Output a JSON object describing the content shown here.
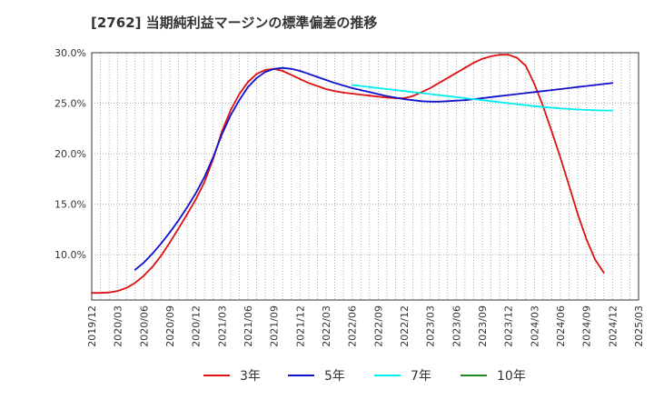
{
  "chart_data": {
    "type": "line",
    "title": "[2762]  当期純利益マージンの標準偏差の推移",
    "xlabel": "",
    "ylabel": "",
    "ylim": [
      5.5,
      30.0
    ],
    "grid": true,
    "legend_position": "bottom",
    "y_ticks": [
      "10.0%",
      "15.0%",
      "20.0%",
      "25.0%",
      "30.0%"
    ],
    "y_tick_values": [
      10,
      15,
      20,
      25,
      30
    ],
    "x_ticks": [
      "2019/12",
      "2020/03",
      "2020/06",
      "2020/09",
      "2020/12",
      "2021/03",
      "2021/06",
      "2021/09",
      "2021/12",
      "2022/03",
      "2022/06",
      "2022/09",
      "2022/12",
      "2023/03",
      "2023/06",
      "2023/09",
      "2023/12",
      "2024/03",
      "2024/06",
      "2024/09",
      "2024/12",
      "2025/03"
    ],
    "series": [
      {
        "name": "3年",
        "color": "#dd1111",
        "points": [
          [
            "2019/12",
            6.2
          ],
          [
            "2020/01",
            6.2
          ],
          [
            "2020/02",
            6.25
          ],
          [
            "2020/03",
            6.4
          ],
          [
            "2020/04",
            6.7
          ],
          [
            "2020/05",
            7.2
          ],
          [
            "2020/06",
            7.9
          ],
          [
            "2020/07",
            8.8
          ],
          [
            "2020/08",
            9.9
          ],
          [
            "2020/09",
            11.2
          ],
          [
            "2020/10",
            12.6
          ],
          [
            "2020/11",
            14.0
          ],
          [
            "2020/12",
            15.5
          ],
          [
            "2021/01",
            17.2
          ],
          [
            "2021/02",
            19.5
          ],
          [
            "2021/03",
            22.2
          ],
          [
            "2021/04",
            24.3
          ],
          [
            "2021/05",
            25.9
          ],
          [
            "2021/06",
            27.1
          ],
          [
            "2021/07",
            27.9
          ],
          [
            "2021/08",
            28.3
          ],
          [
            "2021/09",
            28.4
          ],
          [
            "2021/10",
            28.2
          ],
          [
            "2021/11",
            27.8
          ],
          [
            "2021/12",
            27.4
          ],
          [
            "2022/01",
            27.0
          ],
          [
            "2022/02",
            26.7
          ],
          [
            "2022/03",
            26.4
          ],
          [
            "2022/04",
            26.2
          ],
          [
            "2022/05",
            26.05
          ],
          [
            "2022/06",
            25.95
          ],
          [
            "2022/07",
            25.85
          ],
          [
            "2022/08",
            25.75
          ],
          [
            "2022/09",
            25.65
          ],
          [
            "2022/10",
            25.55
          ],
          [
            "2022/11",
            25.5
          ],
          [
            "2022/12",
            25.5
          ],
          [
            "2023/01",
            25.7
          ],
          [
            "2023/02",
            26.1
          ],
          [
            "2023/03",
            26.5
          ],
          [
            "2023/04",
            27.0
          ],
          [
            "2023/05",
            27.5
          ],
          [
            "2023/06",
            28.0
          ],
          [
            "2023/07",
            28.5
          ],
          [
            "2023/08",
            29.0
          ],
          [
            "2023/09",
            29.4
          ],
          [
            "2023/10",
            29.65
          ],
          [
            "2023/11",
            29.8
          ],
          [
            "2023/12",
            29.8
          ],
          [
            "2024/01",
            29.5
          ],
          [
            "2024/02",
            28.7
          ],
          [
            "2024/03",
            26.9
          ],
          [
            "2024/04",
            24.7
          ],
          [
            "2024/05",
            22.2
          ],
          [
            "2024/06",
            19.6
          ],
          [
            "2024/07",
            16.8
          ],
          [
            "2024/08",
            14.0
          ],
          [
            "2024/09",
            11.5
          ],
          [
            "2024/10",
            9.5
          ],
          [
            "2024/11",
            8.2
          ]
        ]
      },
      {
        "name": "5年",
        "color": "#1111cc",
        "points": [
          [
            "2020/05",
            8.5
          ],
          [
            "2020/06",
            9.2
          ],
          [
            "2020/07",
            10.1
          ],
          [
            "2020/08",
            11.1
          ],
          [
            "2020/09",
            12.2
          ],
          [
            "2020/10",
            13.4
          ],
          [
            "2020/11",
            14.7
          ],
          [
            "2020/12",
            16.1
          ],
          [
            "2021/01",
            17.7
          ],
          [
            "2021/02",
            19.7
          ],
          [
            "2021/03",
            21.9
          ],
          [
            "2021/04",
            23.8
          ],
          [
            "2021/05",
            25.3
          ],
          [
            "2021/06",
            26.6
          ],
          [
            "2021/07",
            27.5
          ],
          [
            "2021/08",
            28.1
          ],
          [
            "2021/09",
            28.4
          ],
          [
            "2021/10",
            28.5
          ],
          [
            "2021/11",
            28.4
          ],
          [
            "2021/12",
            28.2
          ],
          [
            "2022/01",
            27.9
          ],
          [
            "2022/02",
            27.6
          ],
          [
            "2022/03",
            27.3
          ],
          [
            "2022/04",
            27.0
          ],
          [
            "2022/05",
            26.75
          ],
          [
            "2022/06",
            26.5
          ],
          [
            "2022/07",
            26.3
          ],
          [
            "2022/08",
            26.1
          ],
          [
            "2022/09",
            25.9
          ],
          [
            "2022/10",
            25.7
          ],
          [
            "2022/11",
            25.55
          ],
          [
            "2022/12",
            25.4
          ],
          [
            "2023/01",
            25.3
          ],
          [
            "2023/02",
            25.2
          ],
          [
            "2023/03",
            25.15
          ],
          [
            "2023/04",
            25.15
          ],
          [
            "2023/05",
            25.2
          ],
          [
            "2023/06",
            25.25
          ],
          [
            "2023/07",
            25.3
          ],
          [
            "2023/08",
            25.4
          ],
          [
            "2023/09",
            25.5
          ],
          [
            "2023/10",
            25.6
          ],
          [
            "2023/11",
            25.7
          ],
          [
            "2023/12",
            25.8
          ],
          [
            "2024/01",
            25.9
          ],
          [
            "2024/02",
            26.0
          ],
          [
            "2024/03",
            26.1
          ],
          [
            "2024/04",
            26.2
          ],
          [
            "2024/05",
            26.3
          ],
          [
            "2024/06",
            26.4
          ],
          [
            "2024/07",
            26.5
          ],
          [
            "2024/08",
            26.6
          ],
          [
            "2024/09",
            26.7
          ],
          [
            "2024/10",
            26.8
          ],
          [
            "2024/11",
            26.9
          ],
          [
            "2024/12",
            27.0
          ]
        ]
      },
      {
        "name": "7年",
        "color": "#00eeee",
        "points": [
          [
            "2022/06",
            26.8
          ],
          [
            "2022/07",
            26.7
          ],
          [
            "2022/08",
            26.6
          ],
          [
            "2022/09",
            26.5
          ],
          [
            "2022/10",
            26.4
          ],
          [
            "2022/11",
            26.3
          ],
          [
            "2022/12",
            26.2
          ],
          [
            "2023/01",
            26.1
          ],
          [
            "2023/02",
            26.0
          ],
          [
            "2023/03",
            25.9
          ],
          [
            "2023/04",
            25.8
          ],
          [
            "2023/05",
            25.7
          ],
          [
            "2023/06",
            25.6
          ],
          [
            "2023/07",
            25.5
          ],
          [
            "2023/08",
            25.4
          ],
          [
            "2023/09",
            25.3
          ],
          [
            "2023/10",
            25.2
          ],
          [
            "2023/11",
            25.1
          ],
          [
            "2023/12",
            25.0
          ],
          [
            "2024/01",
            24.9
          ],
          [
            "2024/02",
            24.8
          ],
          [
            "2024/03",
            24.7
          ],
          [
            "2024/04",
            24.62
          ],
          [
            "2024/05",
            24.55
          ],
          [
            "2024/06",
            24.48
          ],
          [
            "2024/07",
            24.42
          ],
          [
            "2024/08",
            24.37
          ],
          [
            "2024/09",
            24.33
          ],
          [
            "2024/10",
            24.3
          ],
          [
            "2024/11",
            24.28
          ],
          [
            "2024/12",
            24.27
          ]
        ]
      },
      {
        "name": "10年",
        "color": "#228822",
        "points": []
      }
    ]
  }
}
